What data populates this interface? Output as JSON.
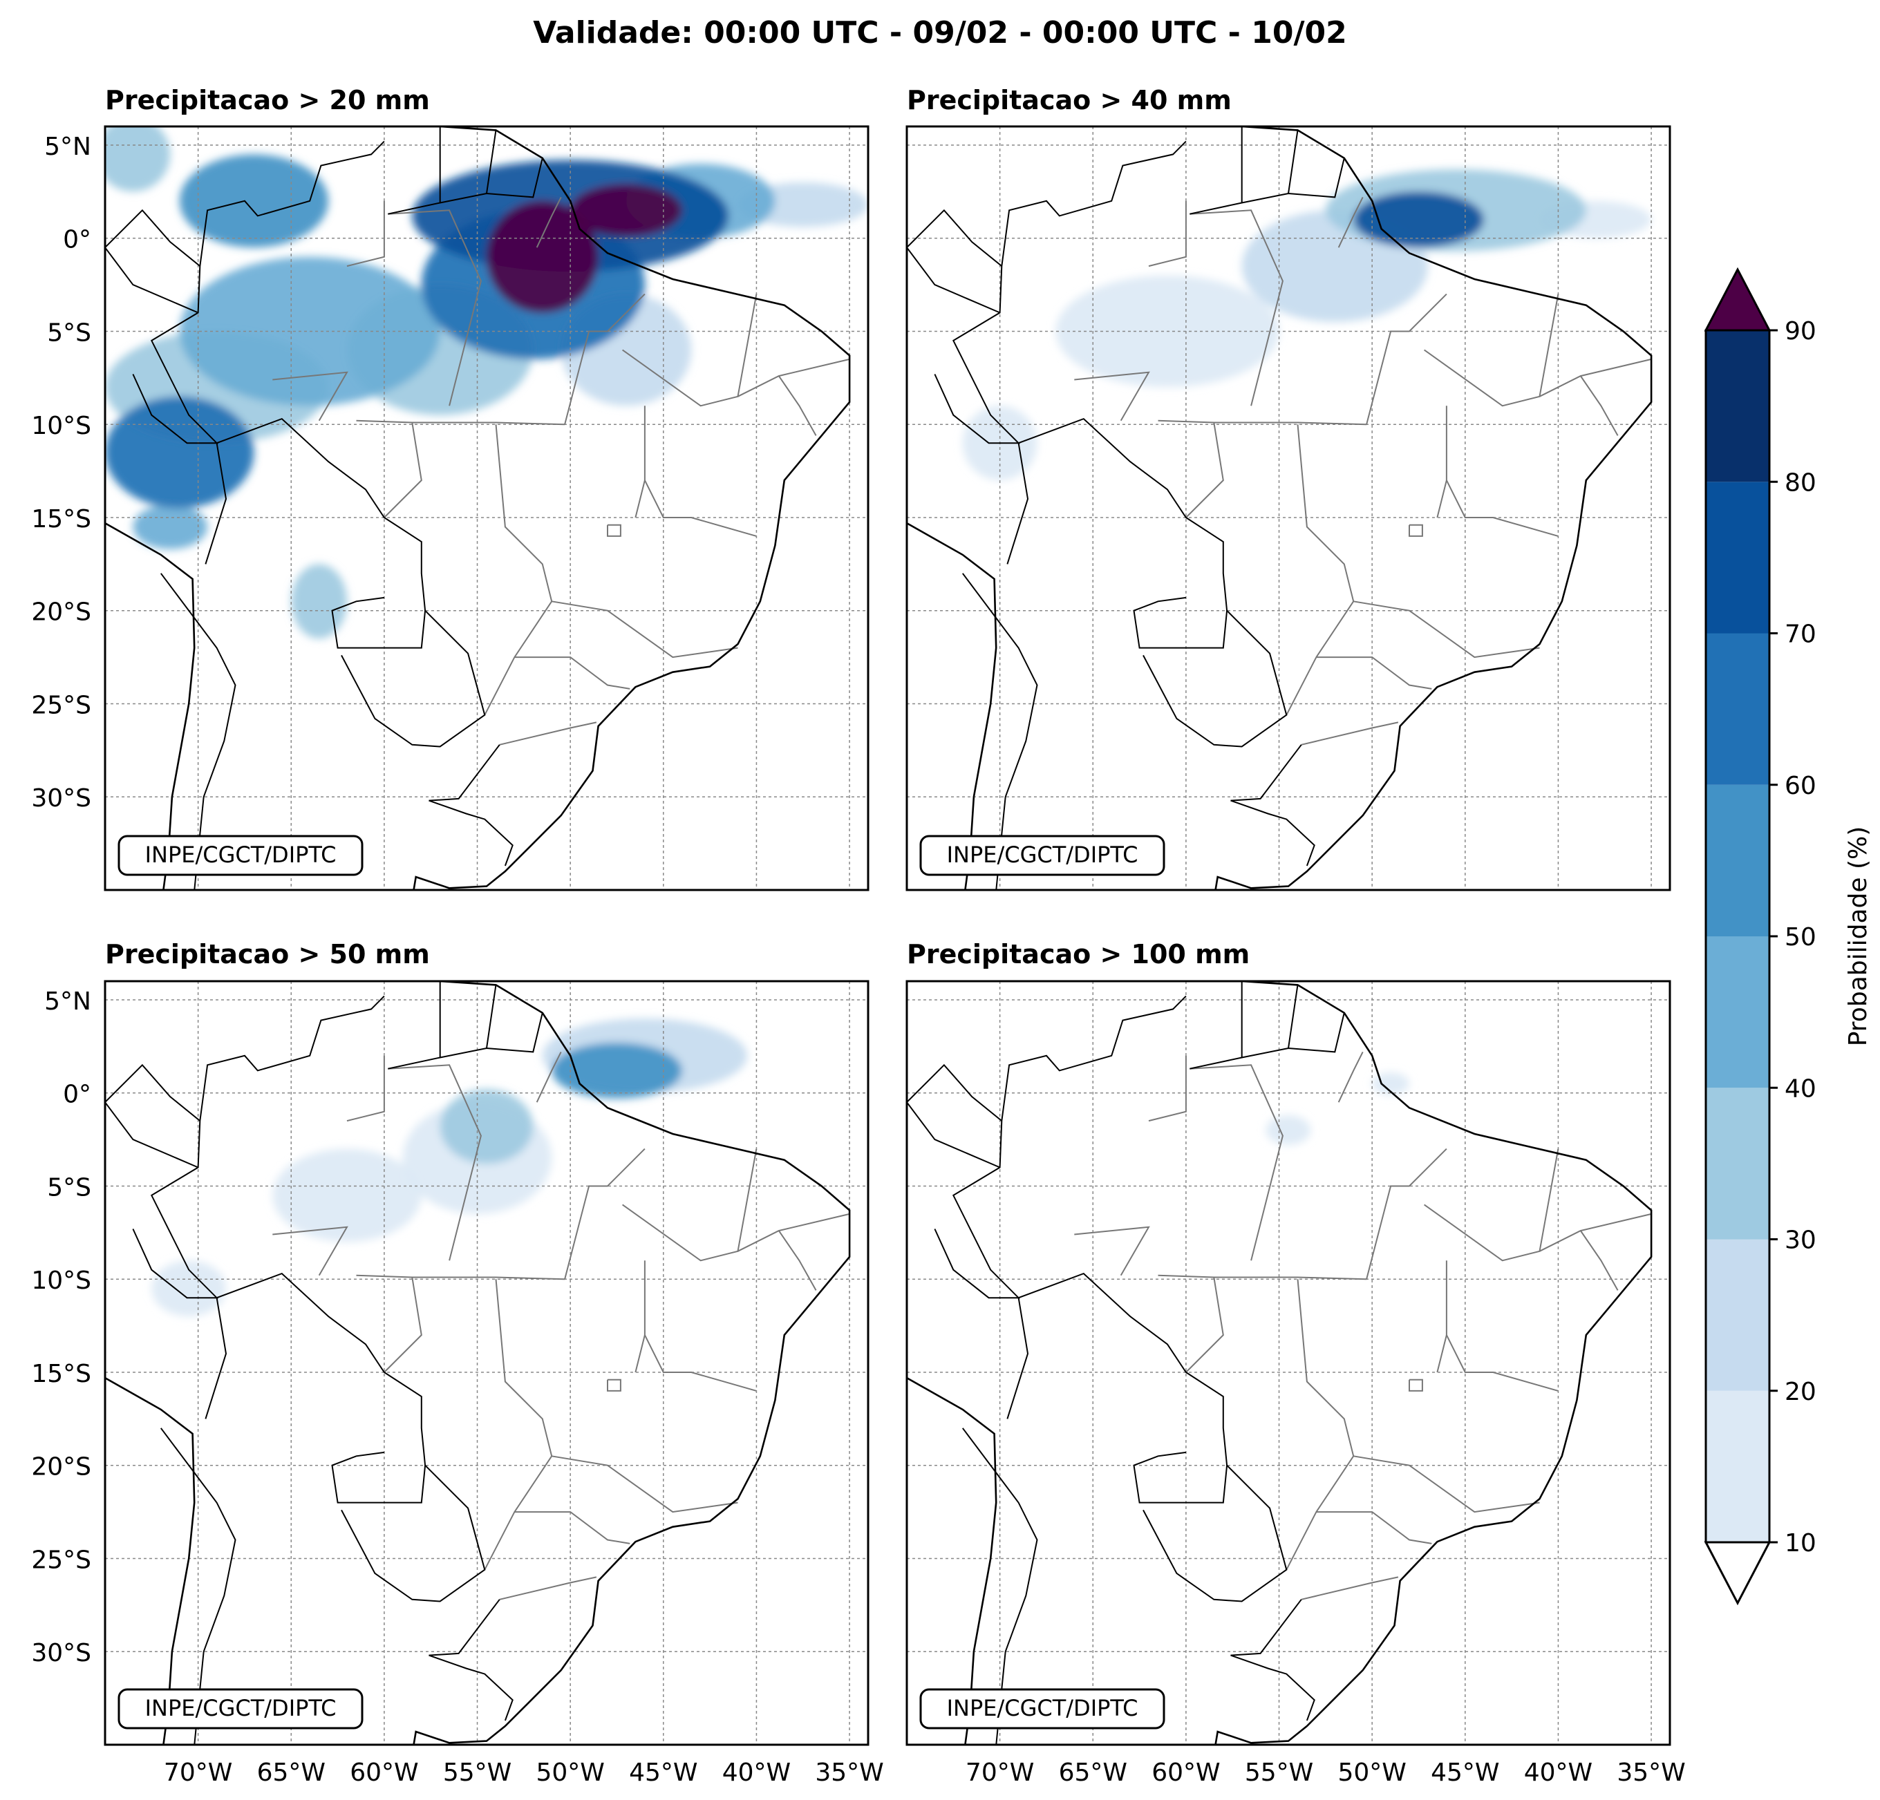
{
  "figure": {
    "title": "Validade: 00:00 UTC - 09/02 - 00:00 UTC - 10/02",
    "credit": "INPE/CGCT/DIPTC"
  },
  "panels": [
    {
      "id": "p20",
      "title": "Precipitacao > 20 mm"
    },
    {
      "id": "p40",
      "title": "Precipitacao > 40 mm"
    },
    {
      "id": "p50",
      "title": "Precipitacao > 50 mm"
    },
    {
      "id": "p100",
      "title": "Precipitacao > 100 mm"
    }
  ],
  "axes": {
    "lat_ticks": [
      "5°N",
      "0°",
      "5°S",
      "10°S",
      "15°S",
      "20°S",
      "25°S",
      "30°S"
    ],
    "lat_values": [
      5,
      0,
      -5,
      -10,
      -15,
      -20,
      -25,
      -30
    ],
    "lon_ticks": [
      "70°W",
      "65°W",
      "60°W",
      "55°W",
      "50°W",
      "45°W",
      "40°W",
      "35°W"
    ],
    "lon_values": [
      -70,
      -65,
      -60,
      -55,
      -50,
      -45,
      -40,
      -35
    ],
    "lon_range": [
      -75,
      -34
    ],
    "lat_range": [
      -35,
      6
    ]
  },
  "colorbar": {
    "label": "Probabilidade (%)",
    "ticks": [
      "10",
      "20",
      "30",
      "40",
      "50",
      "60",
      "70",
      "80",
      "90"
    ],
    "levels": [
      10,
      20,
      30,
      40,
      50,
      60,
      70,
      80,
      90
    ],
    "colors": [
      "#dce9f5",
      "#c6dbef",
      "#9ecae1",
      "#6baed6",
      "#4292c6",
      "#2171b5",
      "#08519c",
      "#08306b"
    ],
    "over_color": "#4d0046",
    "under_color": "#ffffff"
  },
  "chart_data": {
    "type": "heatmap",
    "title": "Validade: 00:00 UTC - 09/02 - 00:00 UTC - 10/02",
    "xlabel": "",
    "ylabel": "",
    "unit": "Probabilidade (%)",
    "panels": [
      {
        "title": "Precipitacao > 20 mm",
        "blobs": [
          {
            "lon": -51.5,
            "lat": -1.0,
            "rlon": 3.0,
            "rlat": 3.0,
            "value": 92
          },
          {
            "lon": -47.0,
            "lat": 1.5,
            "rlon": 3.0,
            "rlat": 1.4,
            "value": 92
          },
          {
            "lon": -50.0,
            "lat": 1.2,
            "rlon": 8.5,
            "rlat": 3.0,
            "value": 75
          },
          {
            "lon": -52.0,
            "lat": -2.5,
            "rlon": 6.0,
            "rlat": 4.0,
            "value": 65
          },
          {
            "lon": -43.0,
            "lat": 2.0,
            "rlon": 4.0,
            "rlat": 2.0,
            "value": 45
          },
          {
            "lon": -37.5,
            "lat": 1.8,
            "rlon": 3.5,
            "rlat": 1.2,
            "value": 25
          },
          {
            "lon": -67.0,
            "lat": 2.0,
            "rlon": 4.0,
            "rlat": 2.5,
            "value": 55
          },
          {
            "lon": -64.0,
            "lat": -5.0,
            "rlon": 7.0,
            "rlat": 4.0,
            "value": 45
          },
          {
            "lon": -57.0,
            "lat": -6.0,
            "rlon": 5.0,
            "rlat": 3.5,
            "value": 35
          },
          {
            "lon": -71.0,
            "lat": -11.5,
            "rlon": 4.0,
            "rlat": 3.0,
            "value": 60
          },
          {
            "lon": -69.0,
            "lat": -8.0,
            "rlon": 6.0,
            "rlat": 3.0,
            "value": 35
          },
          {
            "lon": -71.5,
            "lat": -15.5,
            "rlon": 2.0,
            "rlat": 1.2,
            "value": 45
          },
          {
            "lon": -63.5,
            "lat": -19.5,
            "rlon": 1.5,
            "rlat": 2.0,
            "value": 35
          },
          {
            "lon": -47.0,
            "lat": -6.0,
            "rlon": 3.5,
            "rlat": 3.0,
            "value": 25
          },
          {
            "lon": -73.5,
            "lat": 4.5,
            "rlon": 2.0,
            "rlat": 2.0,
            "value": 30
          }
        ]
      },
      {
        "title": "Precipitacao > 40 mm",
        "blobs": [
          {
            "lon": -47.5,
            "lat": 1.0,
            "rlon": 3.5,
            "rlat": 1.5,
            "value": 75
          },
          {
            "lon": -45.5,
            "lat": 1.5,
            "rlon": 7.0,
            "rlat": 2.2,
            "value": 35
          },
          {
            "lon": -52.0,
            "lat": -1.5,
            "rlon": 5.0,
            "rlat": 3.0,
            "value": 28
          },
          {
            "lon": -61.0,
            "lat": -5.0,
            "rlon": 6.0,
            "rlat": 3.0,
            "value": 18
          },
          {
            "lon": -70.0,
            "lat": -11.0,
            "rlon": 2.0,
            "rlat": 2.0,
            "value": 15
          },
          {
            "lon": -38.0,
            "lat": 1.0,
            "rlon": 3.0,
            "rlat": 1.0,
            "value": 15
          }
        ]
      },
      {
        "title": "Precipitacao > 50 mm",
        "blobs": [
          {
            "lon": -47.5,
            "lat": 1.2,
            "rlon": 3.5,
            "rlat": 1.5,
            "value": 55
          },
          {
            "lon": -46.0,
            "lat": 2.0,
            "rlon": 5.5,
            "rlat": 2.0,
            "value": 25
          },
          {
            "lon": -54.5,
            "lat": -1.8,
            "rlon": 2.5,
            "rlat": 2.0,
            "value": 35
          },
          {
            "lon": -55.0,
            "lat": -3.5,
            "rlon": 4.0,
            "rlat": 3.0,
            "value": 15
          },
          {
            "lon": -62.0,
            "lat": -5.5,
            "rlon": 4.0,
            "rlat": 2.5,
            "value": 15
          },
          {
            "lon": -70.5,
            "lat": -10.5,
            "rlon": 2.0,
            "rlat": 1.5,
            "value": 15
          }
        ]
      },
      {
        "title": "Precipitacao > 100 mm",
        "blobs": [
          {
            "lon": -54.5,
            "lat": -2.0,
            "rlon": 1.2,
            "rlat": 0.8,
            "value": 15
          },
          {
            "lon": -49.0,
            "lat": 0.5,
            "rlon": 1.0,
            "rlat": 0.6,
            "value": 12
          }
        ]
      }
    ]
  }
}
